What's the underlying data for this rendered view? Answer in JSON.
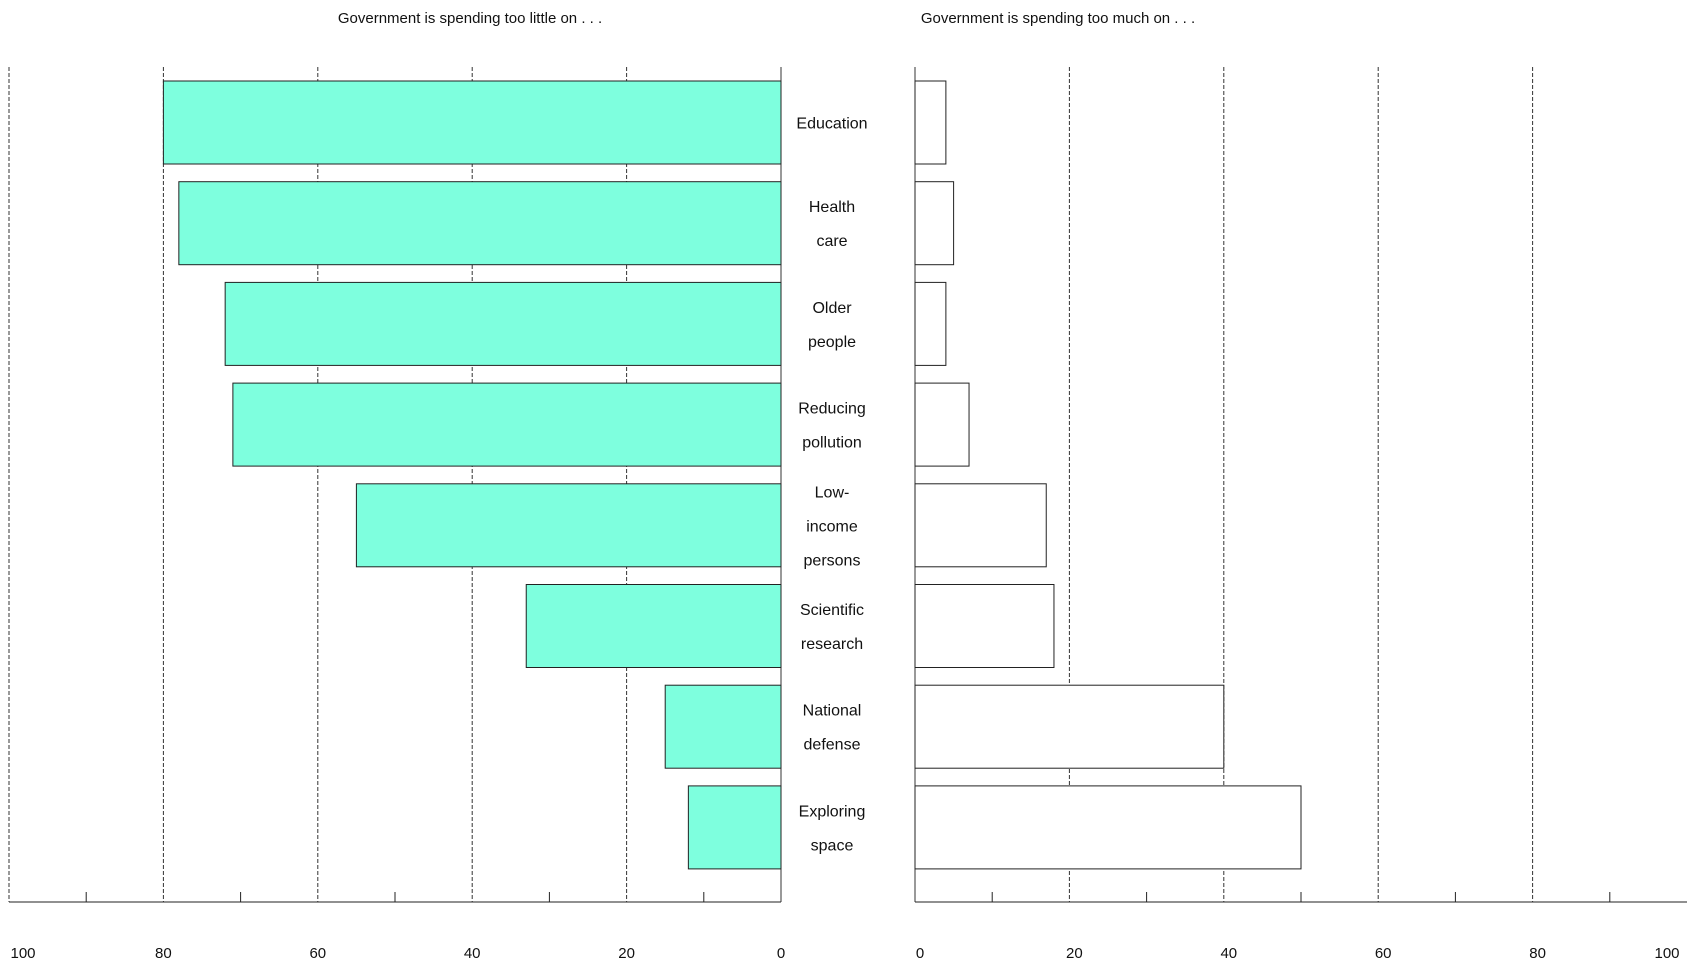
{
  "chart_data": {
    "type": "bar",
    "orientation": "horizontal",
    "layout": "back-to-back",
    "categories": [
      [
        "Education"
      ],
      [
        "Health",
        "care"
      ],
      [
        "Older",
        "people"
      ],
      [
        "Reducing",
        "pollution"
      ],
      [
        "Low-",
        "income",
        "persons"
      ],
      [
        "Scientific",
        "research"
      ],
      [
        "National",
        "defense"
      ],
      [
        "Exploring",
        "space"
      ]
    ],
    "panels": [
      {
        "title": "Government is spending too little on . . .",
        "direction": "right-to-left",
        "xlim": [
          0,
          100
        ],
        "tick_labels": [
          "100",
          "80",
          "60",
          "40",
          "20",
          "0"
        ],
        "values": [
          80,
          78,
          72,
          71,
          55,
          33,
          15,
          12
        ],
        "fill": "#7effde"
      },
      {
        "title": "Government is spending too much on . . .",
        "direction": "left-to-right",
        "xlim": [
          0,
          100
        ],
        "tick_labels": [
          "0",
          "20",
          "40",
          "60",
          "80",
          "100"
        ],
        "values": [
          4,
          5,
          4,
          7,
          17,
          18,
          40,
          50
        ],
        "fill": "#ffffff"
      }
    ],
    "grid": true
  }
}
